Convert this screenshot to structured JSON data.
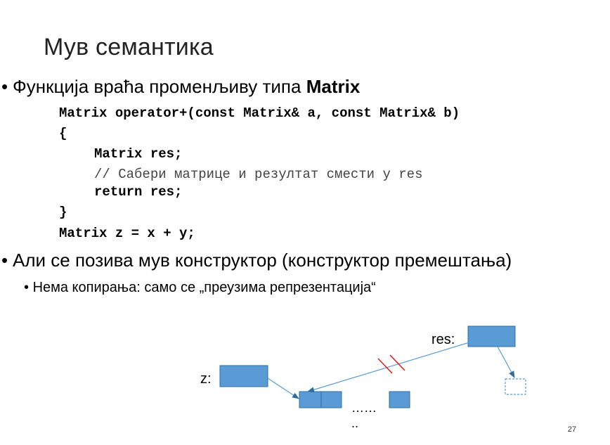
{
  "title": "Мув семантика",
  "bullet1": {
    "text": "Функција враћа променљиву типа ",
    "bold": "Matrix"
  },
  "code": [
    "Matrix operator+(const Matrix& a, const Matrix& b)",
    "{",
    "Matrix res;",
    "// Сабери матрице и резултат смести у res",
    "return res;",
    "}",
    "Matrix z = x + y;"
  ],
  "bullet2": "Али се позива мув конструктор (конструктор премештања)",
  "subbullet": "Нема копирања: само се „преузима репрезентација“",
  "diagram": {
    "label_res": "res:",
    "label_z": "z:",
    "ellipsis1": "……",
    "ellipsis2": "..",
    "colors": {
      "fill": "#5b9bd5",
      "stroke": "#2e6da4",
      "cut": "#e02020"
    }
  },
  "slide_number": "27"
}
